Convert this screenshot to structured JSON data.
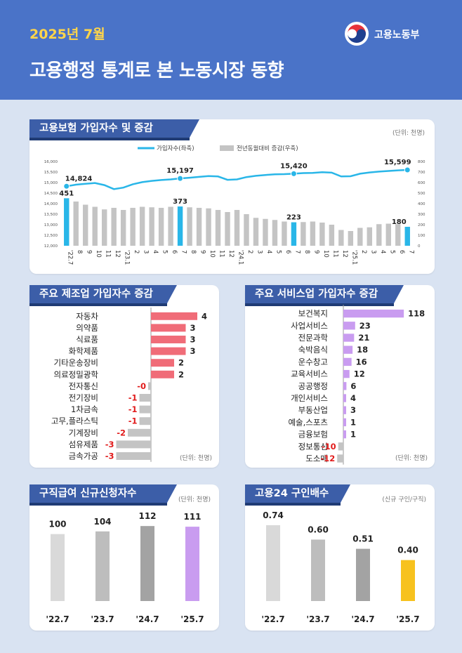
{
  "header": {
    "date": "2025년 7월",
    "title": "고용행정 통계로 본 노동시장 동향",
    "logo_text": "고용노동부",
    "colors": {
      "background": "#4a73c8",
      "date": "#ffd54a",
      "title": "#ffffff"
    }
  },
  "colors": {
    "primary_line": "#29b6e8",
    "bar_gray": "#c4c4c4",
    "bar_highlight": "#29b6e8",
    "negative_text": "#e11b1b",
    "manuf_bar": "#f06c78",
    "service_bar": "#c99cf0",
    "highlight_purple": "#c99cf0",
    "highlight_yellow": "#f7c21e",
    "section_title_bg": "#3c5ea8"
  },
  "chart_data": [
    {
      "id": "insurance",
      "type": "line",
      "title": "고용보험 가입자수 및 증감",
      "unit": "(단위: 천명)",
      "legend": [
        "가입자수(좌축)",
        "전년동월대비 증감(우축)"
      ],
      "categories": [
        "'22.7",
        "8",
        "9",
        "10",
        "11",
        "12",
        "'23.1",
        "2",
        "3",
        "4",
        "5",
        "6",
        "7",
        "8",
        "9",
        "10",
        "11",
        "12",
        "'24.1",
        "2",
        "3",
        "4",
        "5",
        "6",
        "7",
        "8",
        "9",
        "10",
        "11",
        "12",
        "'25.1",
        "2",
        "3",
        "4",
        "5",
        "6",
        "7"
      ],
      "y_left_ticks": [
        "16,000",
        "15,500",
        "15,000",
        "14,500",
        "14,000",
        "13,500",
        "13,000",
        "12,500",
        "12,000"
      ],
      "y_left_range": [
        12000,
        16000
      ],
      "y_right_ticks": [
        "800",
        "700",
        "600",
        "500",
        "400",
        "300",
        "200",
        "100",
        "0"
      ],
      "y_right_range": [
        0,
        800
      ],
      "series": [
        {
          "name": "가입자수(좌축)",
          "type": "line",
          "values": [
            14824,
            14900,
            14940,
            14980,
            14880,
            14690,
            14760,
            14920,
            15020,
            15080,
            15120,
            15150,
            15197,
            15230,
            15270,
            15310,
            15290,
            15130,
            15150,
            15260,
            15320,
            15360,
            15390,
            15400,
            15420,
            15450,
            15460,
            15490,
            15470,
            15290,
            15300,
            15420,
            15480,
            15520,
            15550,
            15580,
            15599
          ]
        },
        {
          "name": "전년동월대비 증감(우축)",
          "type": "bar",
          "values": [
            451,
            420,
            390,
            370,
            345,
            360,
            340,
            360,
            370,
            365,
            360,
            370,
            373,
            365,
            360,
            355,
            340,
            320,
            340,
            300,
            265,
            255,
            245,
            230,
            223,
            225,
            230,
            220,
            200,
            150,
            140,
            170,
            175,
            205,
            210,
            205,
            180
          ]
        }
      ],
      "labeled_points": [
        {
          "index": 0,
          "line_label": "14,824",
          "bar_label": "451"
        },
        {
          "index": 12,
          "line_label": "15,197",
          "bar_label": "373"
        },
        {
          "index": 24,
          "line_label": "15,420",
          "bar_label": "223"
        },
        {
          "index": 36,
          "line_label": "15,599",
          "bar_label": "180"
        }
      ]
    },
    {
      "id": "manufacturing",
      "type": "bar",
      "orientation": "horizontal",
      "title": "주요 제조업 가입자수 증감",
      "unit": "(단위: 천명)",
      "categories": [
        "자동차",
        "의약품",
        "식료품",
        "화학제품",
        "기타운송장비",
        "의료정밀광학",
        "전자통신",
        "전기장비",
        "1차금속",
        "고무,플라스틱",
        "기계장비",
        "섬유제품",
        "금속가공"
      ],
      "values": [
        4,
        3,
        3,
        3,
        2,
        2,
        -0.2,
        -1,
        -1,
        -1,
        -2,
        -3,
        -3
      ],
      "value_labels": [
        "4",
        "3",
        "3",
        "3",
        "2",
        "2",
        "-0",
        "-1",
        "-1",
        "-1",
        "-2",
        "-3",
        "-3"
      ]
    },
    {
      "id": "services",
      "type": "bar",
      "orientation": "horizontal",
      "title": "주요 서비스업 가입자수 증감",
      "unit": "(단위: 천명)",
      "categories": [
        "보건복지",
        "사업서비스",
        "전문과학",
        "숙박음식",
        "운수창고",
        "교육서비스",
        "공공행정",
        "개인서비스",
        "부동산업",
        "예술,스포츠",
        "금융보험",
        "정보통신",
        "도소매"
      ],
      "values": [
        118,
        23,
        21,
        18,
        16,
        12,
        6,
        4,
        3,
        1,
        1,
        -10,
        -12
      ],
      "value_labels": [
        "118",
        "23",
        "21",
        "18",
        "16",
        "12",
        "6",
        "4",
        "3",
        "1",
        "1",
        "-10",
        "-12"
      ]
    },
    {
      "id": "jobseek",
      "type": "bar",
      "title": "구직급여 신규신청자수",
      "unit": "(단위: 천명)",
      "categories": [
        "'22.7",
        "'23.7",
        "'24.7",
        "'25.7"
      ],
      "values": [
        100,
        104,
        112,
        111
      ],
      "value_labels": [
        "100",
        "104",
        "112",
        "111"
      ],
      "bar_colors": [
        "#d9d9d9",
        "#bdbdbd",
        "#a3a3a3",
        "#c99cf0"
      ],
      "ylim": [
        0,
        130
      ]
    },
    {
      "id": "offer",
      "type": "bar",
      "title": "고용24 구인배수",
      "unit": "(신규 구인/구직)",
      "categories": [
        "'22.7",
        "'23.7",
        "'24.7",
        "'25.7"
      ],
      "values": [
        0.74,
        0.6,
        0.51,
        0.4
      ],
      "value_labels": [
        "0.74",
        "0.60",
        "0.51",
        "0.40"
      ],
      "bar_colors": [
        "#d9d9d9",
        "#bdbdbd",
        "#a3a3a3",
        "#f7c21e"
      ],
      "ylim": [
        0,
        0.85
      ]
    }
  ]
}
